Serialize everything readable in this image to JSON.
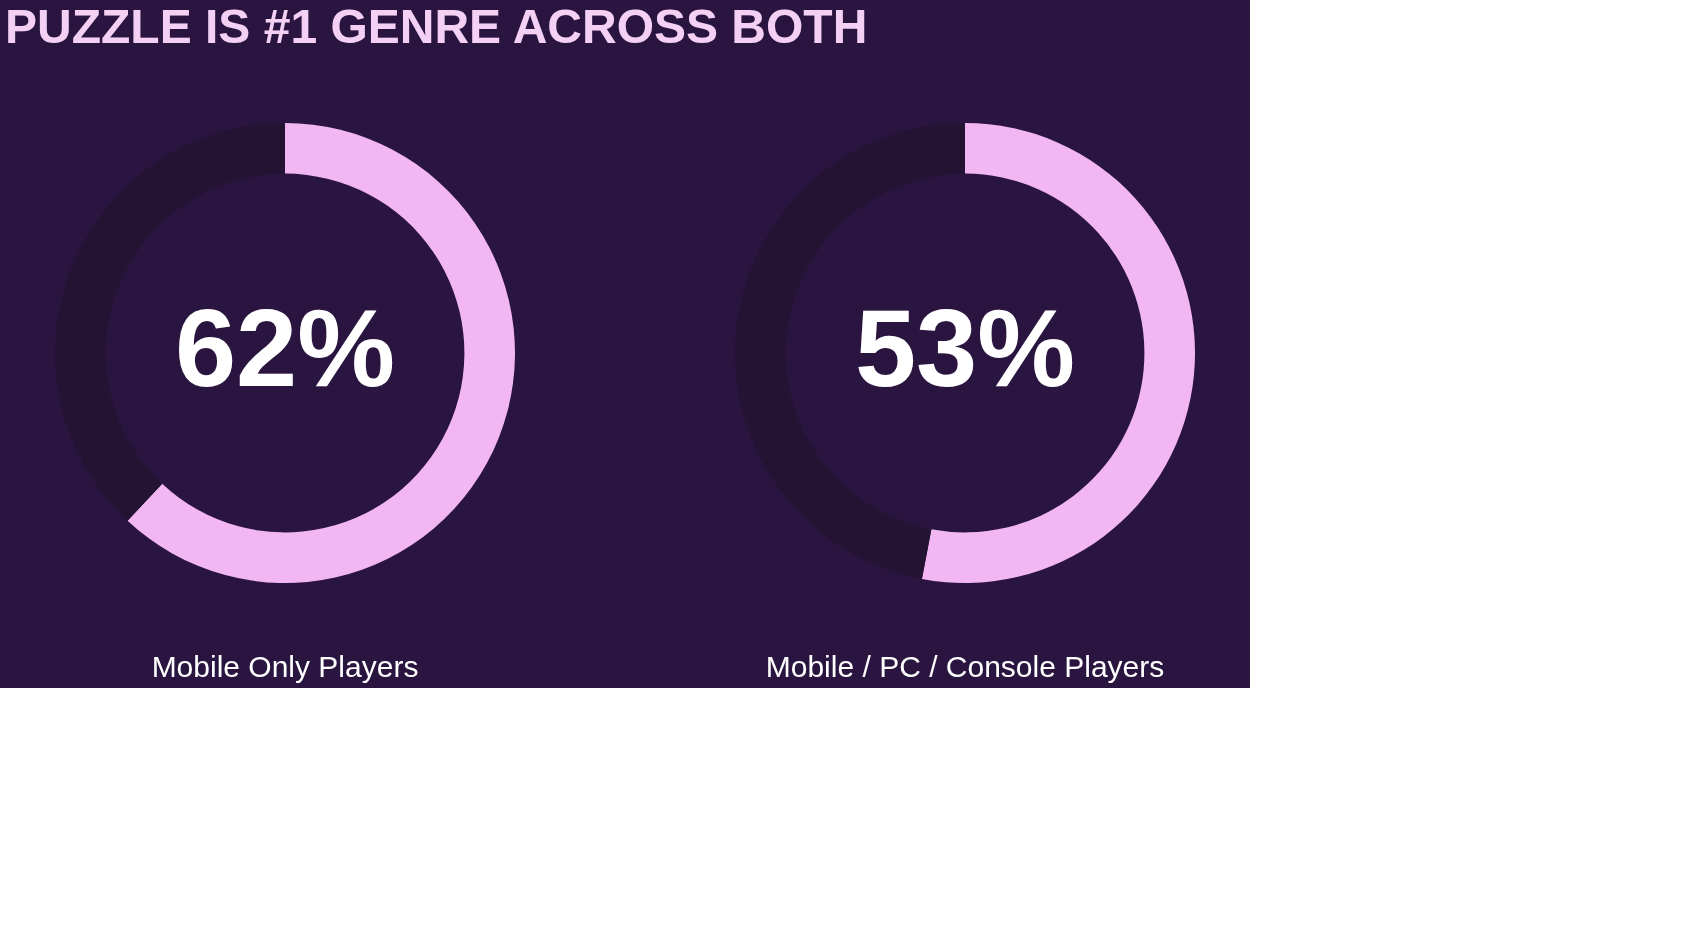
{
  "chart_data": [
    {
      "type": "donut",
      "title": "PUZZLE IS #1 GENRE ACROSS BOTH",
      "xlabel": "Mobile Only Players",
      "categories": [
        null,
        null
      ],
      "values": [
        62,
        38
      ],
      "colors": [
        "#f2b6f2",
        "#241433"
      ],
      "value_labels": [
        "62%",
        null
      ]
    },
    {
      "type": "donut",
      "xlabel": "Mobile / PC / Console Players",
      "categories": [
        null,
        null
      ],
      "values": [
        53,
        47
      ],
      "colors": [
        "#f2b6f2",
        "#241433"
      ],
      "value_labels": [
        "53%",
        null
      ]
    }
  ]
}
